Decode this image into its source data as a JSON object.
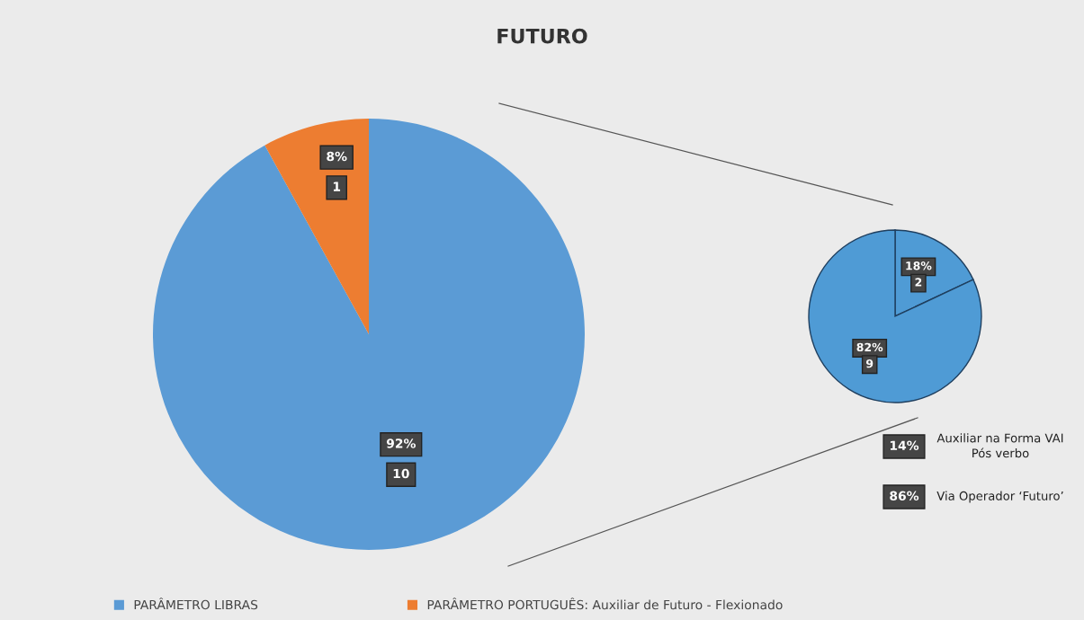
{
  "chart_data": [
    {
      "type": "pie",
      "title": "FUTURO",
      "categories": [
        "PARÂMETRO LIBRAS",
        "PARÂMETRO PORTUGUÊS: Auxiliar de Futuro - Flexionado"
      ],
      "values": [
        92,
        8
      ],
      "colors": [
        "#5b9bd5",
        "#ed7d31"
      ],
      "value_labels": [
        "92%\n10",
        "8%\n1"
      ],
      "legend": "bottom"
    },
    {
      "type": "pie",
      "categories": [
        null,
        null
      ],
      "values": [
        18,
        82
      ],
      "colors": [
        "#4f9bd5",
        "#4f9bd5"
      ],
      "value_labels": [
        "18%\n2",
        "82%\n9"
      ],
      "annotations": [
        "14%",
        "Auxiliar na Forma VAI\nPós verbo",
        "86%",
        "Via Operador ‘Futuro’"
      ]
    }
  ]
}
